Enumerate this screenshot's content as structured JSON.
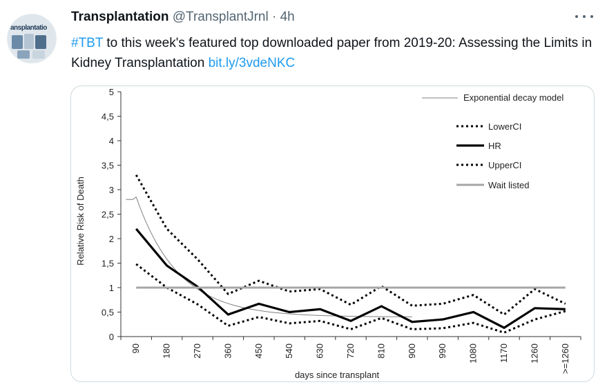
{
  "tweet": {
    "display_name": "Transplantation",
    "handle": "@TransplantJrnl",
    "separator": "·",
    "time": "4h",
    "avatar_text": "ansplantatio",
    "text_hashtag": "#TBT",
    "text_body": " to this week's featured top downloaded paper from 2019-20: Assessing the Limits in Kidney Transplantation ",
    "text_link": "bit.ly/3vdeNKC",
    "more_icon": "more-horizontal-icon"
  },
  "chart_data": {
    "type": "line",
    "title": "",
    "xlabel": "days since transplant",
    "ylabel": "Relative Risk of Death",
    "ylim": [
      0,
      5
    ],
    "y_ticks": [
      "0",
      "0,5",
      "1",
      "1,5",
      "2",
      "2,5",
      "3",
      "3,5",
      "4",
      "4,5",
      "5"
    ],
    "categories": [
      "90",
      "180",
      "270",
      "360",
      "450",
      "540",
      "630",
      "720",
      "810",
      "900",
      "990",
      "1080",
      "1170",
      "1260",
      ">=1260"
    ],
    "series": [
      {
        "name": "LowerCI",
        "style": "dotted",
        "color": "#000000",
        "values": [
          1.48,
          1.0,
          0.66,
          0.22,
          0.4,
          0.27,
          0.32,
          0.15,
          0.38,
          0.15,
          0.17,
          0.28,
          0.08,
          0.35,
          0.52
        ]
      },
      {
        "name": "HR",
        "style": "solid-thick",
        "color": "#000000",
        "values": [
          2.2,
          1.45,
          1.02,
          0.45,
          0.67,
          0.5,
          0.56,
          0.32,
          0.62,
          0.3,
          0.35,
          0.5,
          0.18,
          0.58,
          0.56
        ]
      },
      {
        "name": "UpperCI",
        "style": "dotted",
        "color": "#000000",
        "values": [
          3.3,
          2.2,
          1.58,
          0.87,
          1.14,
          0.92,
          0.97,
          0.65,
          1.03,
          0.63,
          0.67,
          0.85,
          0.45,
          0.97,
          0.67
        ]
      },
      {
        "name": "Wait listed",
        "style": "solid-gray",
        "color": "#a6a6a6",
        "values": [
          1,
          1,
          1,
          1,
          1,
          1,
          1,
          1,
          1,
          1,
          1,
          1,
          1,
          1,
          1
        ]
      }
    ],
    "model": {
      "name": "Exponential decay model",
      "color": "#7f7f7f",
      "x_start": 90,
      "x_end": 900,
      "a": 2.45,
      "k": 0.0081,
      "c": 0.4
    },
    "legend": [
      "Exponential decay model",
      "LowerCI",
      "HR",
      "UpperCI",
      "Wait listed"
    ],
    "legend_position": "top-right",
    "grid": false
  }
}
